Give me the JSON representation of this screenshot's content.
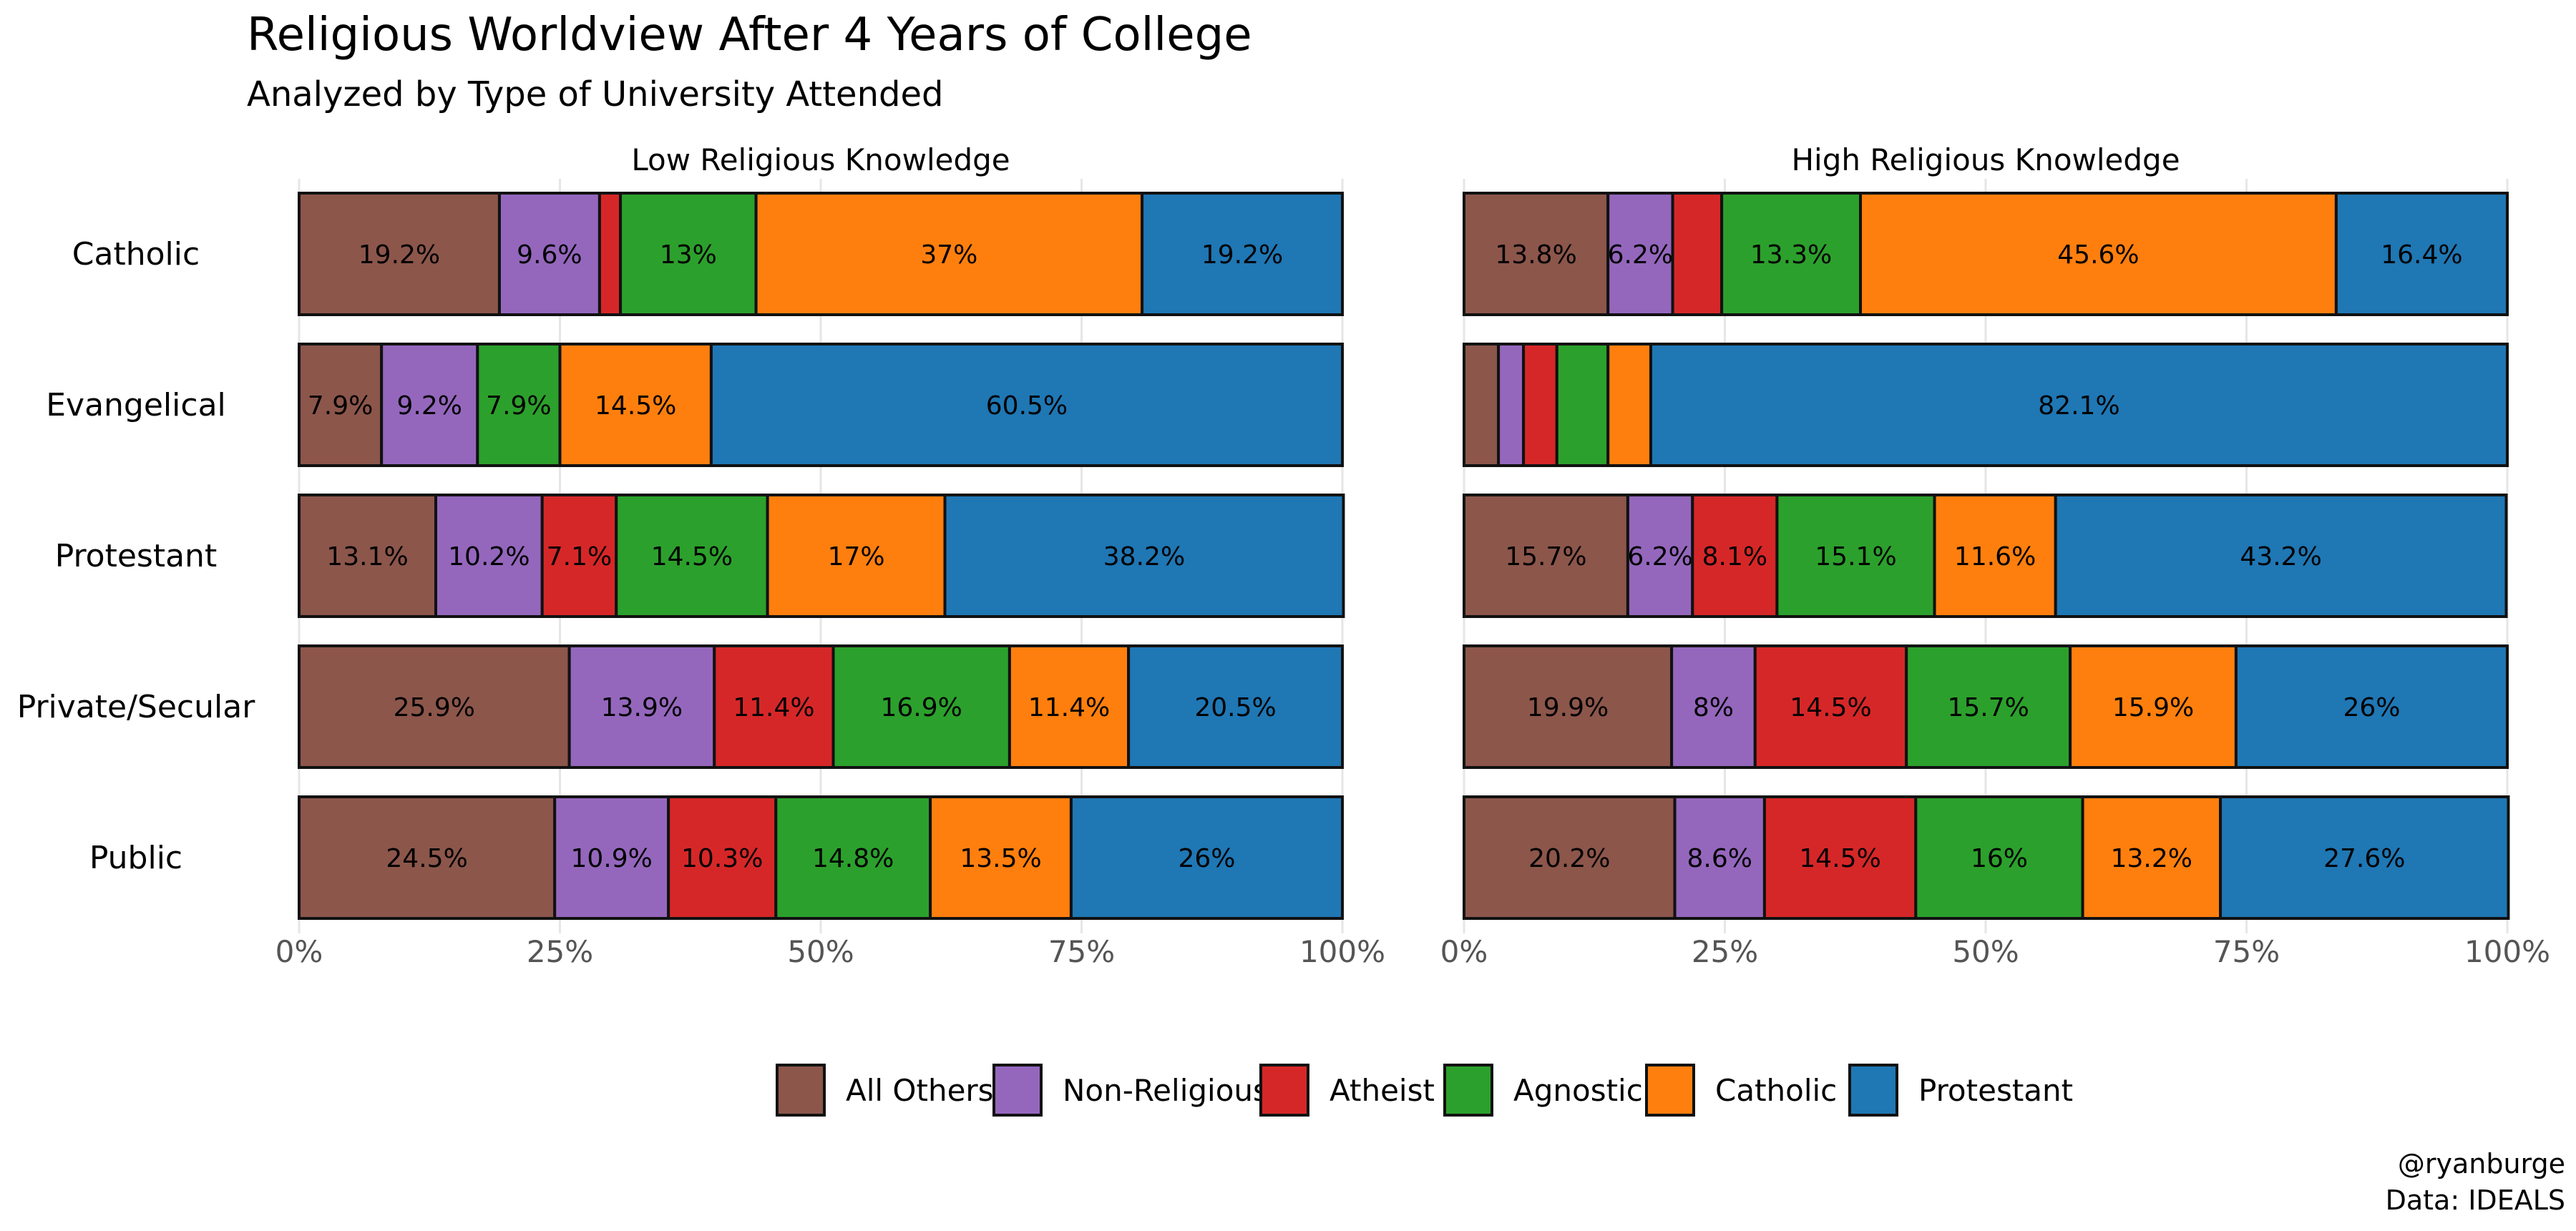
{
  "chart_data": {
    "type": "bar",
    "orientation": "horizontal",
    "stacked": "percent",
    "title": "Religious Worldview After 4 Years of College",
    "subtitle": "Analyzed by Type of University Attended",
    "categories": [
      "Catholic",
      "Evangelical",
      "Protestant",
      "Private/Secular",
      "Public"
    ],
    "segment_order": [
      "All Others",
      "Non-Religious",
      "Atheist",
      "Agnostic",
      "Catholic",
      "Protestant"
    ],
    "colors": {
      "All Others": "#8c564b",
      "Non-Religious": "#9467bd",
      "Atheist": "#d62728",
      "Agnostic": "#2ca02c",
      "Catholic": "#ff7f0e",
      "Protestant": "#1f77b4"
    },
    "x_ticks": [
      "0%",
      "25%",
      "50%",
      "75%",
      "100%"
    ],
    "xlim": [
      0,
      100
    ],
    "grid": true,
    "legend_position": "bottom",
    "panels": [
      {
        "name": "Low Religious Knowledge",
        "rows": [
          {
            "category": "Catholic",
            "values": [
              19.2,
              9.6,
              2.0,
              13.0,
              37.0,
              19.2
            ],
            "labels": [
              "19.2%",
              "9.6%",
              "",
              "13%",
              "37%",
              "19.2%"
            ]
          },
          {
            "category": "Evangelical",
            "values": [
              7.9,
              9.2,
              0.0,
              7.9,
              14.5,
              60.5
            ],
            "labels": [
              "7.9%",
              "9.2%",
              "",
              "7.9%",
              "14.5%",
              "60.5%"
            ]
          },
          {
            "category": "Protestant",
            "values": [
              13.1,
              10.2,
              7.1,
              14.5,
              17.0,
              38.2
            ],
            "labels": [
              "13.1%",
              "10.2%",
              "7.1%",
              "14.5%",
              "17%",
              "38.2%"
            ]
          },
          {
            "category": "Private/Secular",
            "values": [
              25.9,
              13.9,
              11.4,
              16.9,
              11.4,
              20.5
            ],
            "labels": [
              "25.9%",
              "13.9%",
              "11.4%",
              "16.9%",
              "11.4%",
              "20.5%"
            ]
          },
          {
            "category": "Public",
            "values": [
              24.5,
              10.9,
              10.3,
              14.8,
              13.5,
              26.0
            ],
            "labels": [
              "24.5%",
              "10.9%",
              "10.3%",
              "14.8%",
              "13.5%",
              "26%"
            ]
          }
        ]
      },
      {
        "name": "High Religious Knowledge",
        "rows": [
          {
            "category": "Catholic",
            "values": [
              13.8,
              6.2,
              4.7,
              13.3,
              45.6,
              16.4
            ],
            "labels": [
              "13.8%",
              "6.2%",
              "",
              "13.3%",
              "45.6%",
              "16.4%"
            ]
          },
          {
            "category": "Evangelical",
            "values": [
              3.3,
              2.4,
              3.2,
              4.9,
              4.1,
              82.1
            ],
            "labels": [
              "",
              "",
              "",
              "",
              "",
              "82.1%"
            ]
          },
          {
            "category": "Protestant",
            "values": [
              15.7,
              6.2,
              8.1,
              15.1,
              11.6,
              43.2
            ],
            "labels": [
              "15.7%",
              "6.2%",
              "8.1%",
              "15.1%",
              "11.6%",
              "43.2%"
            ]
          },
          {
            "category": "Private/Secular",
            "values": [
              19.9,
              8.0,
              14.5,
              15.7,
              15.9,
              26.0
            ],
            "labels": [
              "19.9%",
              "8%",
              "14.5%",
              "15.7%",
              "15.9%",
              "26%"
            ]
          },
          {
            "category": "Public",
            "values": [
              20.2,
              8.6,
              14.5,
              16.0,
              13.2,
              27.6
            ],
            "labels": [
              "20.2%",
              "8.6%",
              "14.5%",
              "16%",
              "13.2%",
              "27.6%"
            ]
          }
        ]
      }
    ],
    "caption": [
      "@ryanburge",
      "Data: IDEALS"
    ]
  }
}
